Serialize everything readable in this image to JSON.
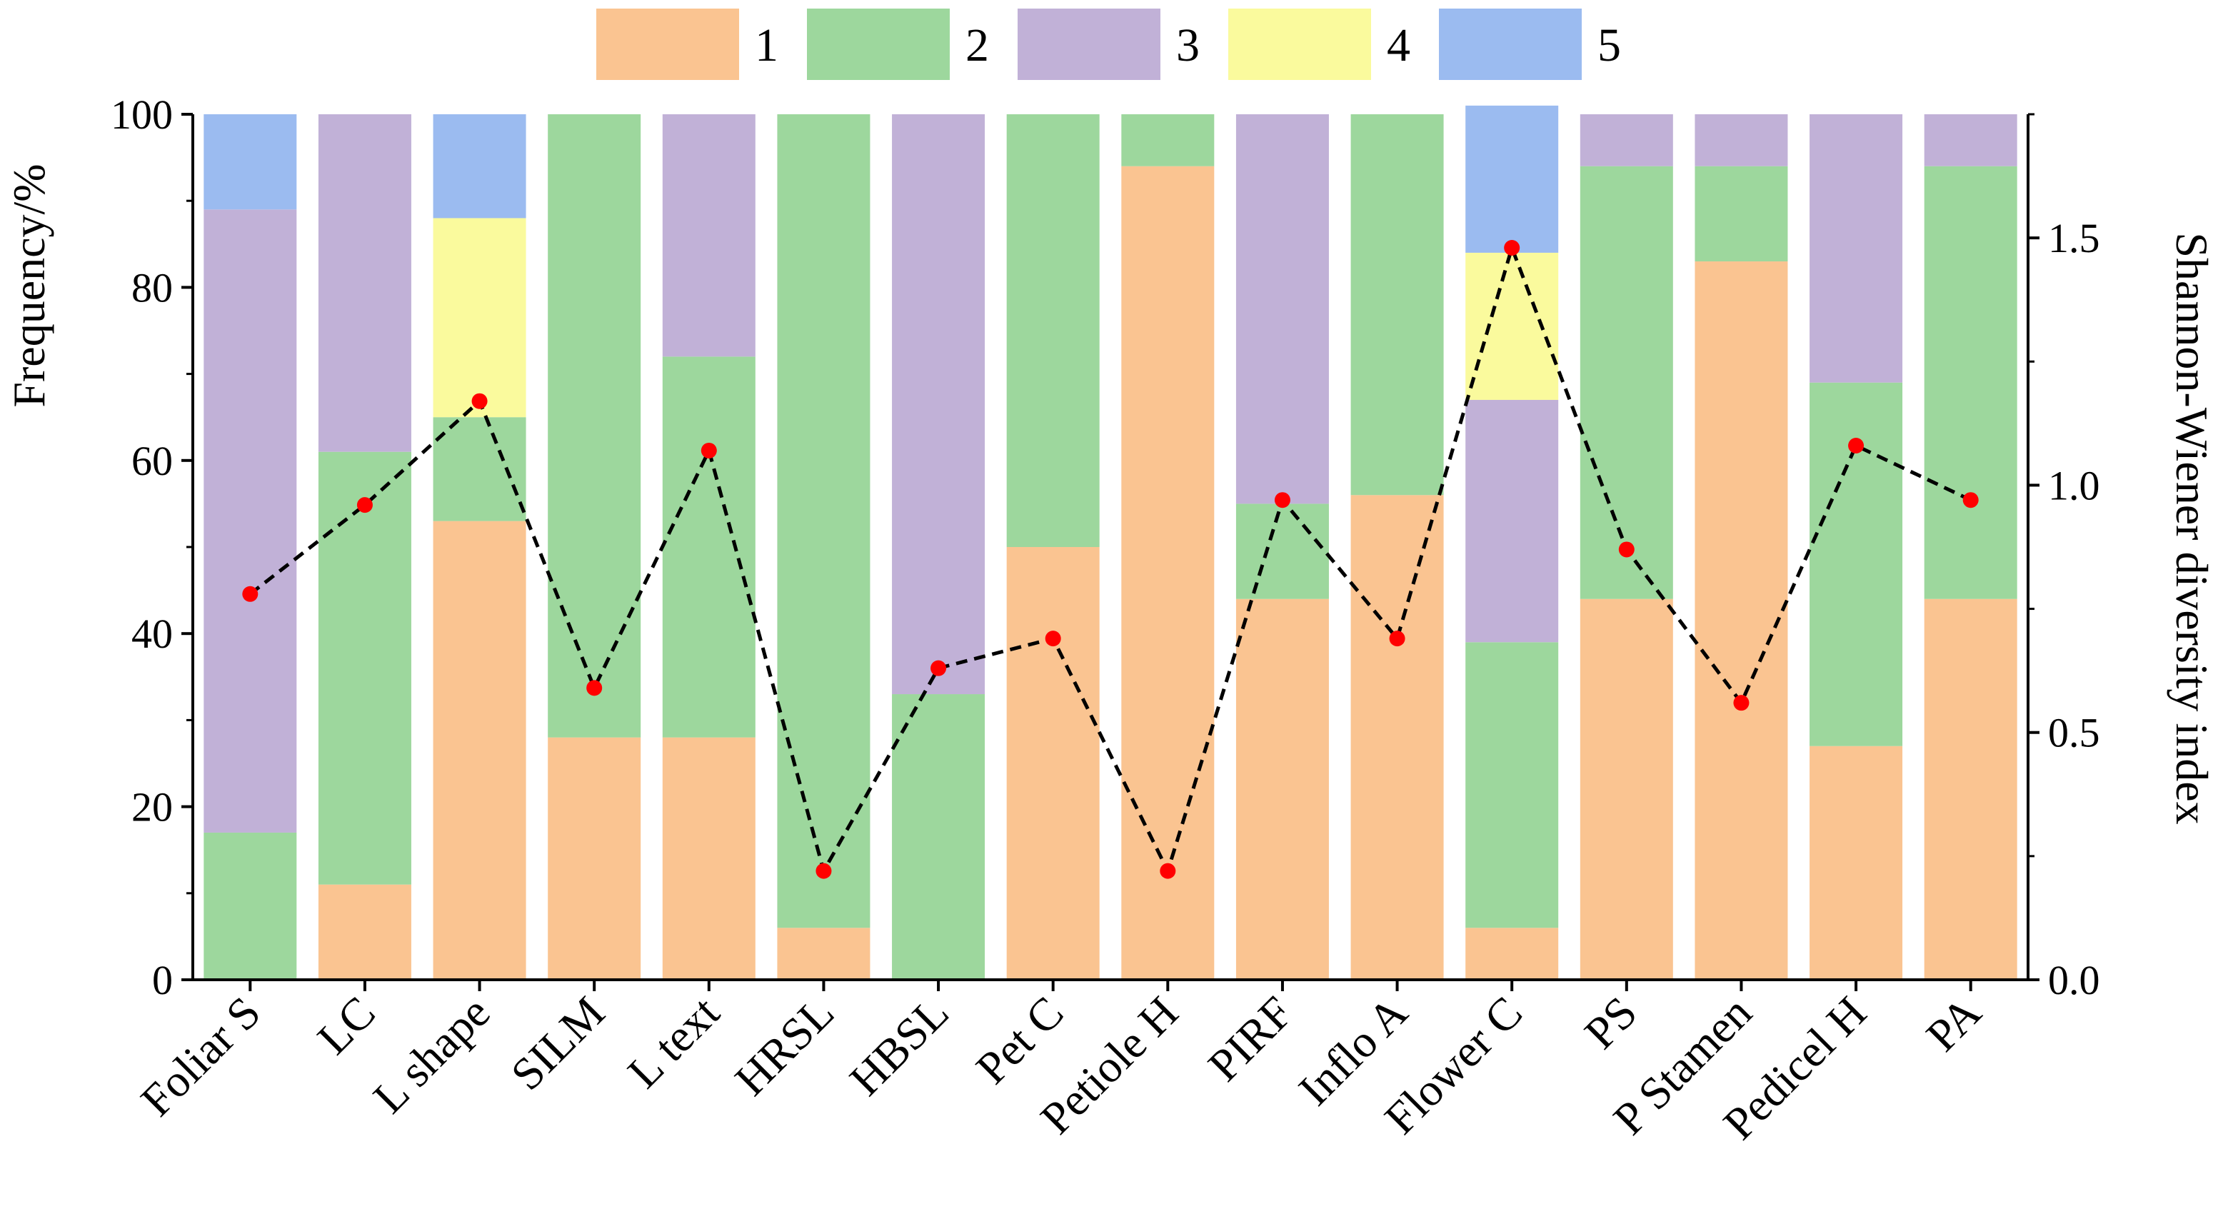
{
  "chart_data": {
    "type": "bar",
    "stacked": true,
    "categories": [
      "Foliar S",
      "LC",
      "L shape",
      "SILM",
      "L text",
      "HRSL",
      "HBSL",
      "Pet C",
      "Petiole H",
      "PIRF",
      "Inflo A",
      "Flower C",
      "PS",
      "P Stamen",
      "Pedicel H",
      "PA"
    ],
    "series": [
      {
        "name": "1",
        "color": "#FAC491",
        "values": [
          0,
          11,
          53,
          28,
          28,
          6,
          0,
          50,
          94,
          44,
          56,
          6,
          44,
          83,
          27,
          44
        ]
      },
      {
        "name": "2",
        "color": "#9DD79D",
        "values": [
          17,
          50,
          12,
          72,
          44,
          94,
          33,
          50,
          6,
          11,
          44,
          33,
          50,
          11,
          42,
          50
        ]
      },
      {
        "name": "3",
        "color": "#C1B1D7",
        "values": [
          72,
          39,
          0,
          0,
          28,
          0,
          67,
          0,
          0,
          45,
          0,
          28,
          6,
          6,
          31,
          6
        ]
      },
      {
        "name": "4",
        "color": "#FAFA9D",
        "values": [
          0,
          0,
          23,
          0,
          0,
          0,
          0,
          0,
          0,
          0,
          0,
          17,
          0,
          0,
          0,
          0
        ]
      },
      {
        "name": "5",
        "color": "#9BBBF0",
        "values": [
          11,
          0,
          12,
          0,
          0,
          0,
          0,
          0,
          0,
          0,
          0,
          17,
          0,
          0,
          0,
          0
        ]
      }
    ],
    "line": {
      "name": "Shannon-Wiener diversity index",
      "axis": "right",
      "color": "#000000",
      "marker_color": "#FF0000",
      "values": [
        0.78,
        0.96,
        1.17,
        0.59,
        1.07,
        0.22,
        0.63,
        0.69,
        0.22,
        0.97,
        0.69,
        1.48,
        0.87,
        0.56,
        1.08,
        0.97
      ]
    },
    "ylabel": "Frequency/%",
    "ylabel_right": "Shannon-Wiener diversity index",
    "ylim": [
      0,
      100
    ],
    "ylim_right": [
      0,
      1.75
    ],
    "yticks": [
      "0",
      "20",
      "40",
      "60",
      "80",
      "100"
    ],
    "yticks_right": [
      "0.0",
      "0.5",
      "1.0",
      "1.5"
    ],
    "legend_position": "top"
  }
}
